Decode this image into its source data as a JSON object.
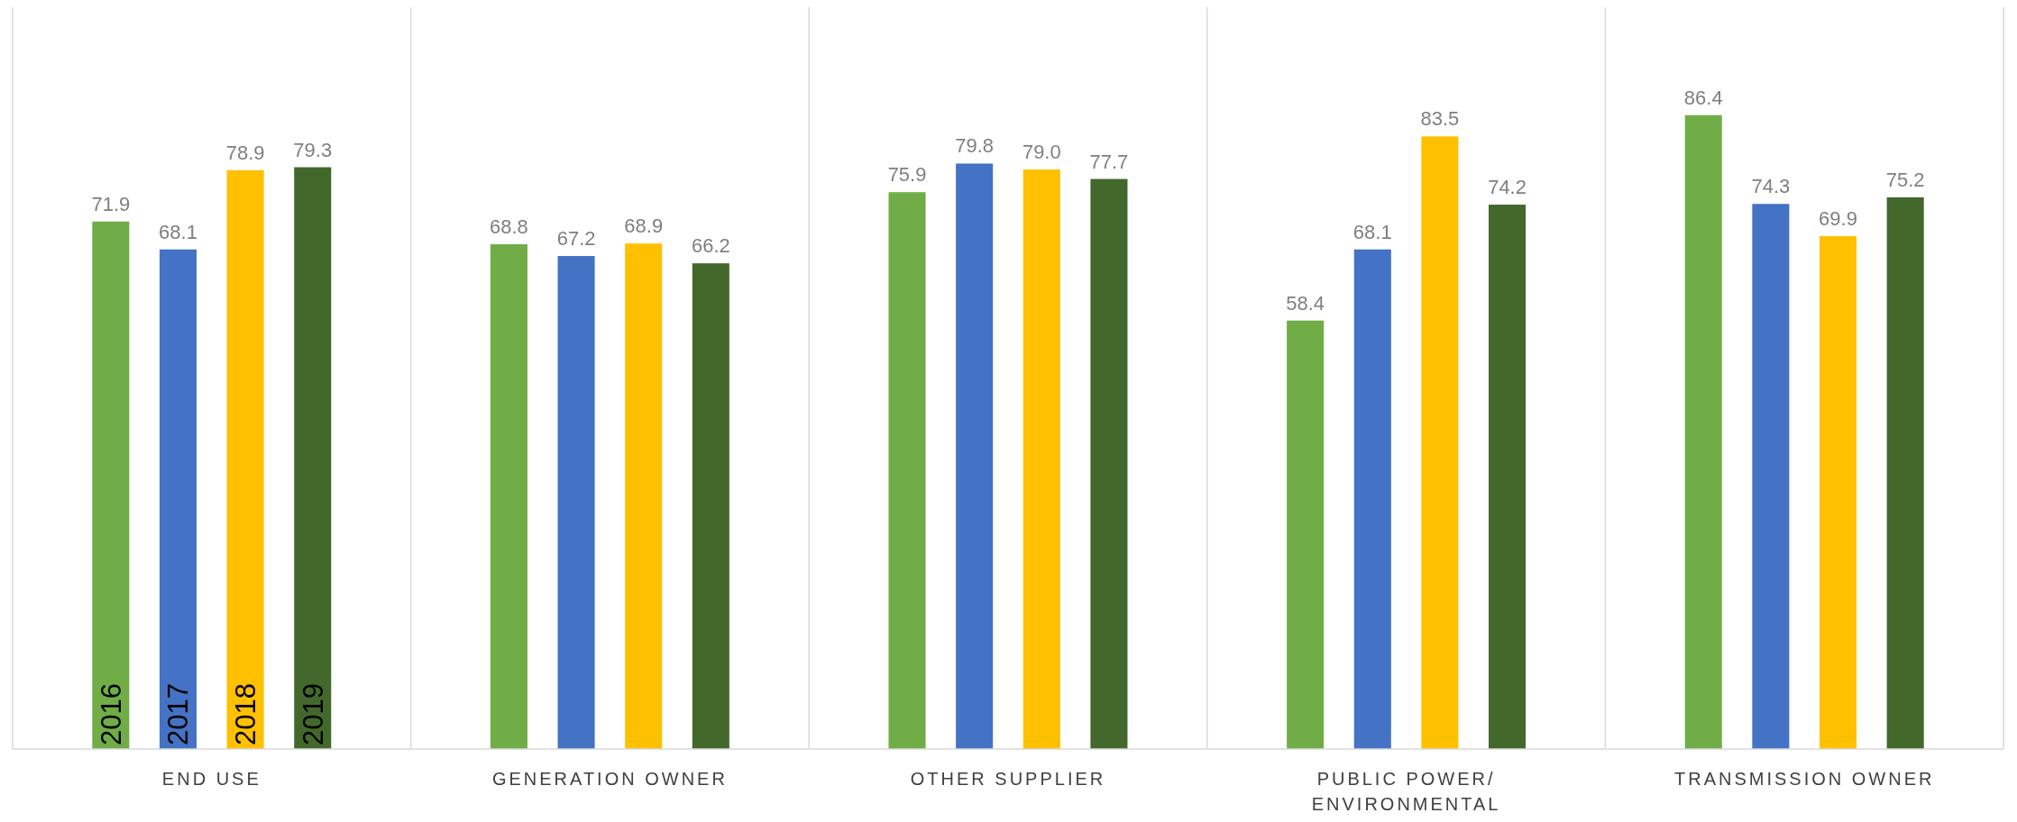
{
  "chart_data": {
    "type": "bar",
    "categories": [
      "END USE",
      "GENERATION OWNER",
      "OTHER SUPPLIER",
      "PUBLIC POWER/ ENVIRONMENTAL",
      "TRANSMISSION OWNER"
    ],
    "series": [
      {
        "name": "2016",
        "color": "#70ad47",
        "values": [
          71.9,
          68.8,
          75.9,
          58.4,
          86.4
        ],
        "value_labels": [
          "71.9",
          "68.8",
          "75.9",
          "58.4",
          "86.4"
        ]
      },
      {
        "name": "2017",
        "color": "#4472c4",
        "values": [
          68.1,
          67.2,
          79.8,
          68.1,
          74.3
        ],
        "value_labels": [
          "68.1",
          "67.2",
          "79.8",
          "68.1",
          "74.3"
        ]
      },
      {
        "name": "2018",
        "color": "#ffc000",
        "values": [
          78.9,
          68.9,
          79.0,
          83.5,
          69.9
        ],
        "value_labels": [
          "78.9",
          "68.9",
          "79.0",
          "83.5",
          "69.9"
        ]
      },
      {
        "name": "2019",
        "color": "#43682b",
        "values": [
          79.3,
          66.2,
          77.7,
          74.2,
          75.2
        ],
        "value_labels": [
          "79.3",
          "66.2",
          "77.7",
          "74.2",
          "75.2"
        ]
      }
    ]
  }
}
